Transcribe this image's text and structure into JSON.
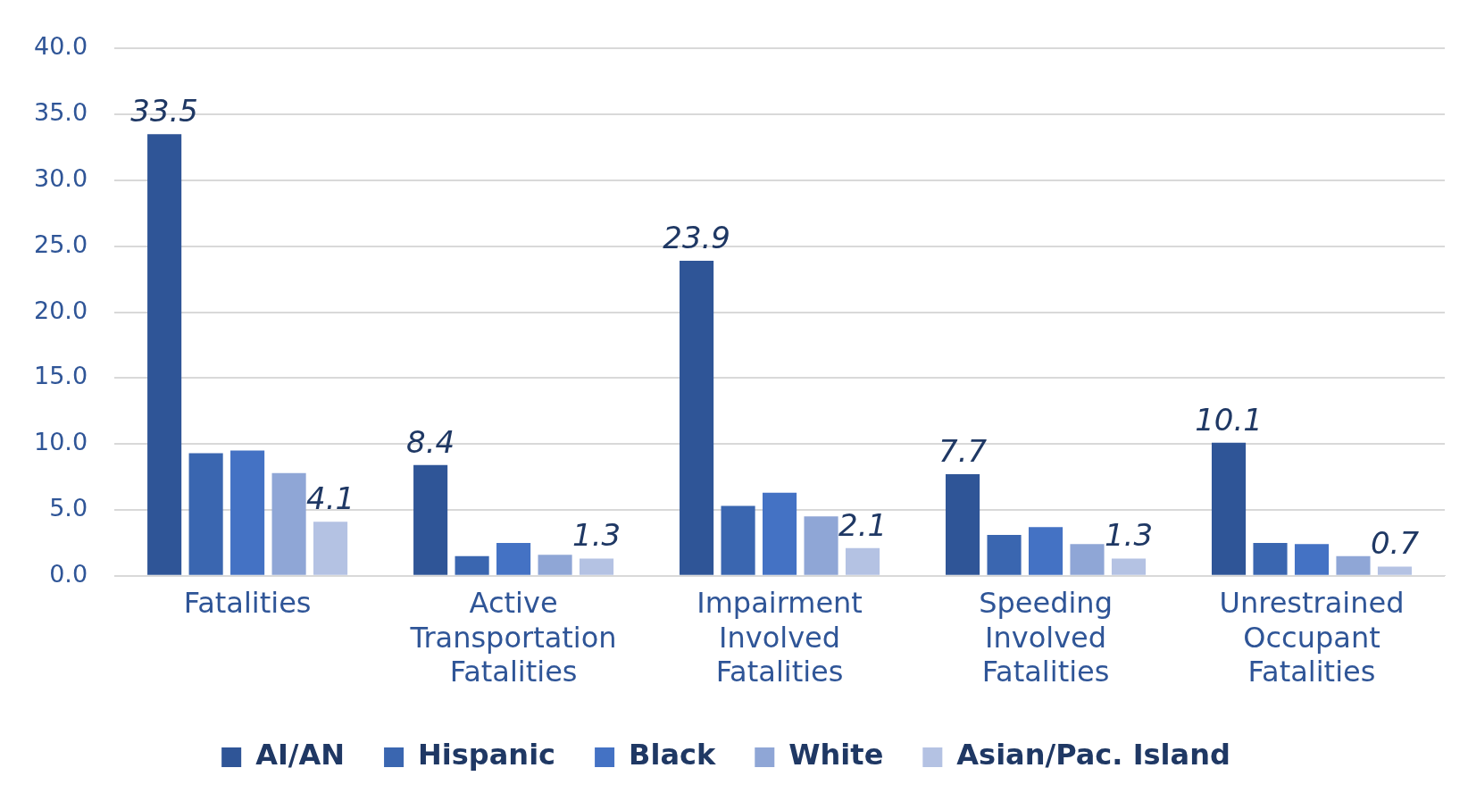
{
  "chart_data": {
    "type": "bar",
    "categories": [
      "Fatalities",
      "Active Transportation Fatalities",
      "Impairment Involved Fatalities",
      "Speeding Involved Fatalities",
      "Unrestrained Occupant Fatalities"
    ],
    "series": [
      {
        "name": "AI/AN",
        "color": "#2f5597",
        "values": [
          33.5,
          8.4,
          23.9,
          7.7,
          10.1
        ],
        "value_labels": [
          "33.5",
          "8.4",
          "23.9",
          "7.7",
          "10.1"
        ]
      },
      {
        "name": "Hispanic",
        "color": "#3a66b0",
        "values": [
          9.3,
          1.5,
          5.3,
          3.1,
          2.5
        ]
      },
      {
        "name": "Black",
        "color": "#4472c4",
        "values": [
          9.5,
          2.5,
          6.3,
          3.7,
          2.4
        ]
      },
      {
        "name": "White",
        "color": "#8fa6d6",
        "values": [
          7.8,
          1.6,
          4.5,
          2.4,
          1.5
        ]
      },
      {
        "name": "Asian/Pac. Island",
        "color": "#b4c2e3",
        "values": [
          4.1,
          1.3,
          2.1,
          1.3,
          0.7
        ],
        "value_labels": [
          "4.1",
          "1.3",
          "2.1",
          "1.3",
          "0.7"
        ]
      }
    ],
    "ylim": [
      0,
      40
    ],
    "yticks": [
      {
        "value": 0,
        "label": "0.0"
      },
      {
        "value": 5,
        "label": "5.0"
      },
      {
        "value": 10,
        "label": "10.0"
      },
      {
        "value": 15,
        "label": "15.0"
      },
      {
        "value": 20,
        "label": "20.0"
      },
      {
        "value": 25,
        "label": "25.0"
      },
      {
        "value": 30,
        "label": "30.0"
      },
      {
        "value": 35,
        "label": "35.0"
      },
      {
        "value": 40,
        "label": "40.0"
      }
    ],
    "grid": "y",
    "legend": "bottom"
  }
}
